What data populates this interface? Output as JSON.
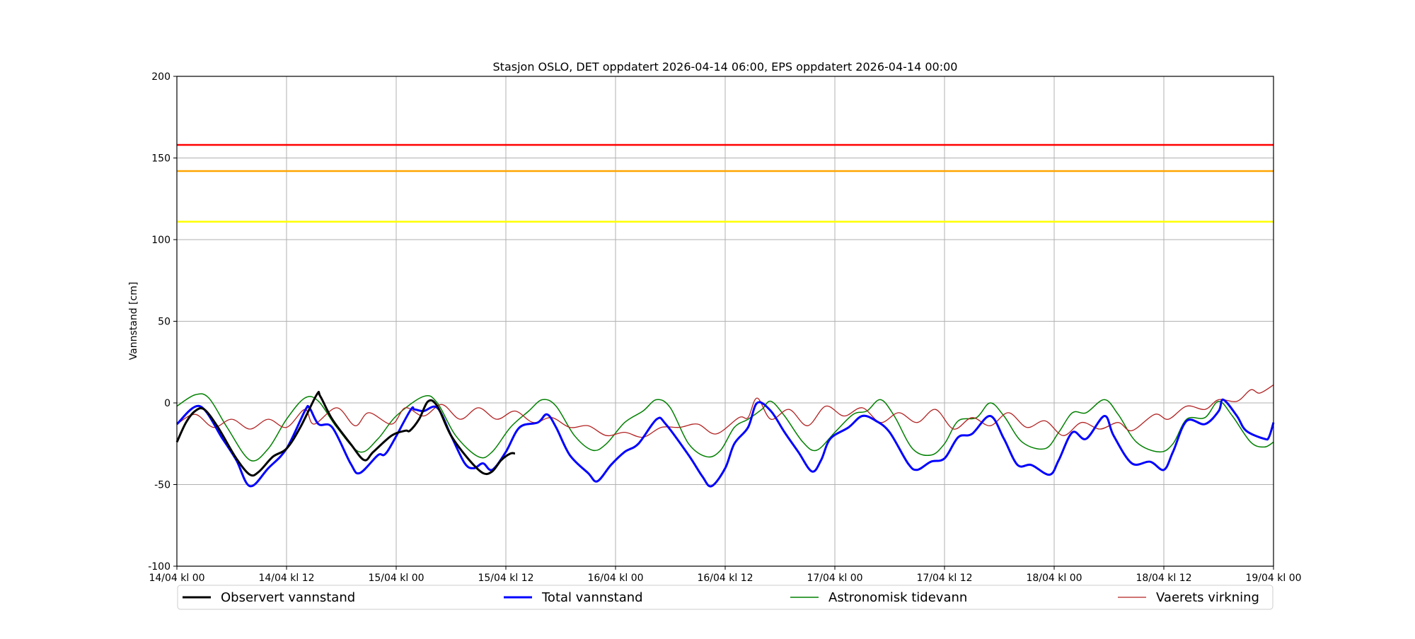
{
  "chart_data": {
    "type": "line",
    "title": "Stasjon OSLO, DET oppdatert 2026-04-14 06:00, EPS oppdatert 2026-04-14 00:00",
    "xlabel": "",
    "ylabel": "Vannstand [cm]",
    "xlim_hours": [
      0,
      120
    ],
    "ylim": [
      -100,
      200
    ],
    "grid": true,
    "legend_placement": "bottom",
    "x_ticks": [
      {
        "h": 0,
        "label": "14/04 kl 00"
      },
      {
        "h": 12,
        "label": "14/04 kl 12"
      },
      {
        "h": 24,
        "label": "15/04 kl 00"
      },
      {
        "h": 36,
        "label": "15/04 kl 12"
      },
      {
        "h": 48,
        "label": "16/04 kl 00"
      },
      {
        "h": 60,
        "label": "16/04 kl 12"
      },
      {
        "h": 72,
        "label": "17/04 kl 00"
      },
      {
        "h": 84,
        "label": "17/04 kl 12"
      },
      {
        "h": 96,
        "label": "18/04 kl 00"
      },
      {
        "h": 108,
        "label": "18/04 kl 12"
      },
      {
        "h": 120,
        "label": "19/04 kl 00"
      }
    ],
    "y_ticks": [
      -100,
      -50,
      0,
      50,
      100,
      150,
      200
    ],
    "thresholds": [
      {
        "value": 158,
        "color": "#ff0000"
      },
      {
        "value": 142,
        "color": "#ffa500"
      },
      {
        "value": 111,
        "color": "#ffff00"
      }
    ],
    "series": [
      {
        "name": "Observert vannstand",
        "color": "#000000",
        "width": 3,
        "points": [
          [
            0,
            -24
          ],
          [
            1,
            -12
          ],
          [
            2,
            -5
          ],
          [
            3,
            -4
          ],
          [
            4.5,
            -15
          ],
          [
            6.5,
            -34
          ],
          [
            8,
            -44
          ],
          [
            9,
            -42
          ],
          [
            10.5,
            -33
          ],
          [
            12,
            -28
          ],
          [
            13.5,
            -15
          ],
          [
            15.3,
            5
          ],
          [
            15.7,
            4
          ],
          [
            17,
            -10
          ],
          [
            19,
            -25
          ],
          [
            20.5,
            -35
          ],
          [
            21.5,
            -30
          ],
          [
            23.5,
            -20
          ],
          [
            25,
            -17
          ],
          [
            25.5,
            -17
          ],
          [
            26.5,
            -10
          ],
          [
            27.5,
            1
          ],
          [
            28.5,
            -2
          ],
          [
            30,
            -20
          ],
          [
            32,
            -35
          ],
          [
            33.5,
            -43
          ],
          [
            34.5,
            -42
          ],
          [
            35.5,
            -35
          ],
          [
            36.5,
            -31
          ],
          [
            37,
            -31
          ]
        ]
      },
      {
        "name": "Total vannstand",
        "color": "#0000ff",
        "width": 3,
        "points": [
          [
            0,
            -13
          ],
          [
            2.5,
            -2
          ],
          [
            5,
            -22
          ],
          [
            6.5,
            -35
          ],
          [
            8,
            -51
          ],
          [
            10,
            -40
          ],
          [
            12,
            -28
          ],
          [
            14,
            -5
          ],
          [
            14.5,
            -3
          ],
          [
            15.5,
            -13
          ],
          [
            17,
            -15
          ],
          [
            19,
            -37
          ],
          [
            20,
            -43
          ],
          [
            22,
            -32
          ],
          [
            23,
            -30
          ],
          [
            25.5,
            -5
          ],
          [
            26,
            -4
          ],
          [
            27,
            -5
          ],
          [
            28.5,
            -3
          ],
          [
            30,
            -20
          ],
          [
            31.5,
            -37
          ],
          [
            32.5,
            -40
          ],
          [
            33.5,
            -37
          ],
          [
            34.5,
            -41
          ],
          [
            36,
            -30
          ],
          [
            37.5,
            -15
          ],
          [
            39.5,
            -12
          ],
          [
            40.5,
            -7
          ],
          [
            41.5,
            -15
          ],
          [
            43,
            -32
          ],
          [
            45,
            -43
          ],
          [
            46,
            -48
          ],
          [
            47.5,
            -38
          ],
          [
            49,
            -30
          ],
          [
            50.5,
            -25
          ],
          [
            52.5,
            -10
          ],
          [
            53.5,
            -13
          ],
          [
            56,
            -32
          ],
          [
            57.5,
            -45
          ],
          [
            58.5,
            -51
          ],
          [
            60,
            -40
          ],
          [
            61,
            -25
          ],
          [
            62.5,
            -15
          ],
          [
            63.5,
            0
          ],
          [
            65,
            -5
          ],
          [
            66.5,
            -18
          ],
          [
            68,
            -30
          ],
          [
            69.5,
            -42
          ],
          [
            70.5,
            -35
          ],
          [
            71.5,
            -22
          ],
          [
            73.5,
            -15
          ],
          [
            75,
            -8
          ],
          [
            76.5,
            -11
          ],
          [
            78,
            -18
          ],
          [
            80,
            -37
          ],
          [
            81,
            -41
          ],
          [
            82.5,
            -36
          ],
          [
            84,
            -34
          ],
          [
            85.5,
            -21
          ],
          [
            87,
            -19
          ],
          [
            89,
            -8
          ],
          [
            90.5,
            -22
          ],
          [
            92,
            -38
          ],
          [
            93.5,
            -38
          ],
          [
            95.5,
            -44
          ],
          [
            96.5,
            -35
          ],
          [
            98,
            -18
          ],
          [
            99.5,
            -22
          ],
          [
            101.5,
            -8
          ],
          [
            102.5,
            -20
          ],
          [
            104.5,
            -37
          ],
          [
            106.5,
            -36
          ],
          [
            108,
            -41
          ],
          [
            109,
            -30
          ],
          [
            110.5,
            -11
          ],
          [
            112.5,
            -13
          ],
          [
            114,
            -5
          ],
          [
            114.5,
            2
          ],
          [
            116,
            -8
          ],
          [
            117,
            -17
          ],
          [
            119,
            -22
          ],
          [
            119.5,
            -21
          ],
          [
            120,
            -12
          ]
        ]
      },
      {
        "name": "Astronomisk tidevann",
        "color": "#008000",
        "width": 1.5,
        "points": [
          [
            0,
            -2
          ],
          [
            2,
            5
          ],
          [
            3.5,
            3
          ],
          [
            5.5,
            -15
          ],
          [
            8,
            -35
          ],
          [
            10,
            -28
          ],
          [
            12,
            -10
          ],
          [
            14,
            3
          ],
          [
            15.5,
            1
          ],
          [
            17.5,
            -15
          ],
          [
            20,
            -30
          ],
          [
            22,
            -22
          ],
          [
            24,
            -8
          ],
          [
            27,
            4
          ],
          [
            28.5,
            0
          ],
          [
            30.5,
            -20
          ],
          [
            33,
            -33
          ],
          [
            34.5,
            -30
          ],
          [
            36.5,
            -15
          ],
          [
            38.5,
            -5
          ],
          [
            40,
            2
          ],
          [
            41.5,
            -2
          ],
          [
            43.5,
            -20
          ],
          [
            45.5,
            -29
          ],
          [
            47,
            -25
          ],
          [
            49,
            -12
          ],
          [
            51,
            -5
          ],
          [
            52.5,
            2
          ],
          [
            54,
            -3
          ],
          [
            56,
            -25
          ],
          [
            58,
            -33
          ],
          [
            59.5,
            -29
          ],
          [
            61,
            -15
          ],
          [
            62.5,
            -10
          ],
          [
            64,
            -4
          ],
          [
            65,
            1
          ],
          [
            66.5,
            -8
          ],
          [
            68.5,
            -24
          ],
          [
            70,
            -29
          ],
          [
            72,
            -18
          ],
          [
            74,
            -7
          ],
          [
            75.5,
            -5
          ],
          [
            77,
            2
          ],
          [
            78.5,
            -8
          ],
          [
            80.5,
            -28
          ],
          [
            82.5,
            -32
          ],
          [
            84,
            -25
          ],
          [
            85.5,
            -11
          ],
          [
            87.5,
            -9
          ],
          [
            89,
            0
          ],
          [
            90.5,
            -8
          ],
          [
            92.5,
            -24
          ],
          [
            95,
            -28
          ],
          [
            96.5,
            -18
          ],
          [
            98,
            -6
          ],
          [
            99.5,
            -6
          ],
          [
            101.5,
            2
          ],
          [
            103,
            -7
          ],
          [
            105,
            -24
          ],
          [
            107.5,
            -30
          ],
          [
            109,
            -25
          ],
          [
            110.5,
            -10
          ],
          [
            112.5,
            -9
          ],
          [
            114,
            1
          ],
          [
            115.5,
            -8
          ],
          [
            117.5,
            -24
          ],
          [
            119,
            -27
          ],
          [
            120,
            -24
          ]
        ]
      },
      {
        "name": "Vaerets virkning",
        "color": "#b22222",
        "width": 1.3,
        "points": [
          [
            0,
            -13
          ],
          [
            2,
            -7
          ],
          [
            4,
            -15
          ],
          [
            6,
            -10
          ],
          [
            8,
            -16
          ],
          [
            10,
            -10
          ],
          [
            12,
            -15
          ],
          [
            14,
            -4
          ],
          [
            15,
            -13
          ],
          [
            17.5,
            -3
          ],
          [
            19.5,
            -14
          ],
          [
            21,
            -6
          ],
          [
            23.5,
            -13
          ],
          [
            25,
            -3
          ],
          [
            27,
            -8
          ],
          [
            29,
            -1
          ],
          [
            31,
            -10
          ],
          [
            33,
            -3
          ],
          [
            35,
            -10
          ],
          [
            37,
            -5
          ],
          [
            39,
            -12
          ],
          [
            41,
            -9
          ],
          [
            43,
            -15
          ],
          [
            45,
            -14
          ],
          [
            47,
            -20
          ],
          [
            49,
            -18
          ],
          [
            51,
            -21
          ],
          [
            53,
            -15
          ],
          [
            55,
            -15
          ],
          [
            57,
            -13
          ],
          [
            59,
            -19
          ],
          [
            61.5,
            -9
          ],
          [
            62.5,
            -9
          ],
          [
            63.5,
            3
          ],
          [
            65,
            -10
          ],
          [
            67,
            -4
          ],
          [
            69,
            -14
          ],
          [
            71,
            -2
          ],
          [
            73,
            -8
          ],
          [
            75,
            -3
          ],
          [
            77,
            -12
          ],
          [
            79,
            -6
          ],
          [
            81,
            -12
          ],
          [
            83,
            -4
          ],
          [
            85,
            -16
          ],
          [
            87,
            -9
          ],
          [
            89,
            -14
          ],
          [
            91,
            -6
          ],
          [
            93,
            -15
          ],
          [
            95,
            -11
          ],
          [
            97,
            -20
          ],
          [
            99,
            -12
          ],
          [
            101,
            -16
          ],
          [
            103,
            -12
          ],
          [
            104.5,
            -17
          ],
          [
            107,
            -7
          ],
          [
            108.5,
            -10
          ],
          [
            110.5,
            -2
          ],
          [
            112.5,
            -4
          ],
          [
            114,
            2
          ],
          [
            116,
            1
          ],
          [
            117.5,
            8
          ],
          [
            118.5,
            6
          ],
          [
            120,
            11
          ]
        ]
      }
    ]
  }
}
